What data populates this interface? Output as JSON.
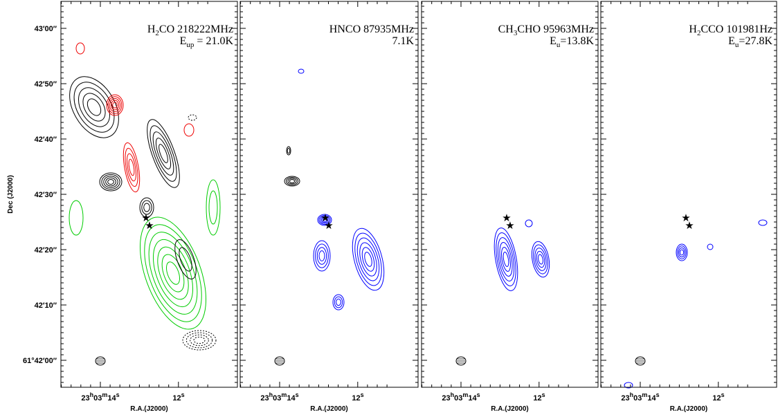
{
  "y_axis": {
    "title": "Dec (J2000)",
    "ticks": [
      "43′00″",
      "42′50″",
      "42′40″",
      "42′30″",
      "42′20″",
      "42′10″",
      "61°42′00″"
    ]
  },
  "x_axis": {
    "title": "R.A.(J2000)",
    "first_tick": [
      "23",
      "h",
      "03",
      "m",
      "14",
      "s"
    ],
    "second_tick": [
      "12",
      "s"
    ]
  },
  "panels": [
    {
      "title": [
        "H",
        "2",
        "CO 218222MHz"
      ],
      "subtitle": [
        "E",
        "up",
        " = 21.0K"
      ]
    },
    {
      "title": [
        "HNCO 87935MHz"
      ],
      "subtitle": [
        "7.1K"
      ]
    },
    {
      "title": [
        "CH",
        "3",
        "CHO 95963MHz"
      ],
      "subtitle": [
        "E",
        "u",
        "=13.8K"
      ]
    },
    {
      "title": [
        "H",
        "2",
        "CCO 101981Hz"
      ],
      "subtitle": [
        "E",
        "u",
        "=27.8K"
      ]
    }
  ]
}
